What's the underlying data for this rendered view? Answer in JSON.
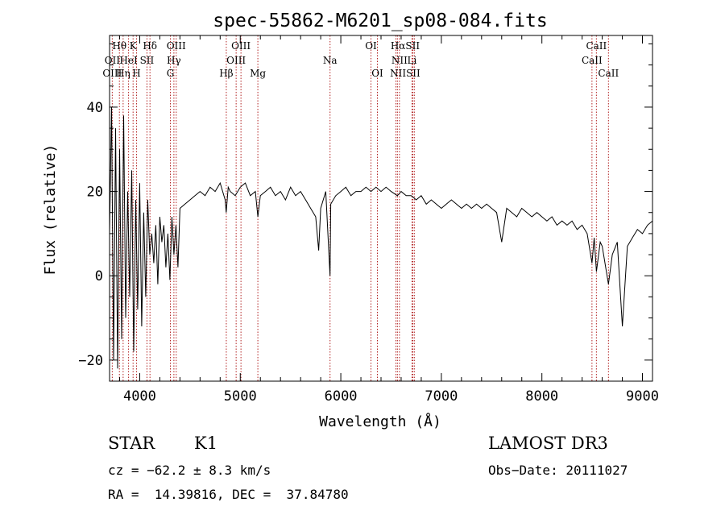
{
  "chart_data": {
    "type": "line",
    "title": "spec-55862-M6201_sp08-084.fits",
    "xlabel": "Wavelength (Å)",
    "ylabel": "Flux (relative)",
    "xlim": [
      3700,
      9100
    ],
    "ylim": [
      -25,
      57
    ],
    "x_ticks": [
      4000,
      5000,
      6000,
      7000,
      8000,
      9000
    ],
    "y_ticks": [
      -20,
      0,
      20,
      40
    ],
    "grid": false,
    "series": [
      {
        "name": "flux",
        "x": [
          3700,
          3720,
          3740,
          3760,
          3780,
          3800,
          3820,
          3840,
          3860,
          3880,
          3900,
          3920,
          3940,
          3960,
          3980,
          4000,
          4020,
          4040,
          4060,
          4080,
          4100,
          4120,
          4140,
          4160,
          4180,
          4200,
          4220,
          4240,
          4260,
          4280,
          4300,
          4320,
          4340,
          4360,
          4380,
          4400,
          4450,
          4500,
          4550,
          4600,
          4650,
          4700,
          4750,
          4800,
          4850,
          4860,
          4880,
          4900,
          4950,
          5000,
          5050,
          5100,
          5150,
          5175,
          5200,
          5250,
          5300,
          5350,
          5400,
          5450,
          5500,
          5550,
          5600,
          5650,
          5700,
          5750,
          5780,
          5800,
          5850,
          5893,
          5900,
          5950,
          6000,
          6050,
          6100,
          6150,
          6200,
          6250,
          6300,
          6350,
          6400,
          6450,
          6500,
          6563,
          6600,
          6650,
          6700,
          6750,
          6800,
          6850,
          6900,
          6950,
          7000,
          7050,
          7100,
          7150,
          7200,
          7250,
          7300,
          7350,
          7400,
          7450,
          7500,
          7550,
          7600,
          7650,
          7700,
          7750,
          7800,
          7850,
          7900,
          7950,
          8000,
          8050,
          8100,
          8150,
          8200,
          8250,
          8300,
          8350,
          8400,
          8450,
          8498,
          8520,
          8542,
          8580,
          8600,
          8662,
          8700,
          8750,
          8800,
          8850,
          8900,
          8950,
          9000,
          9050,
          9100
        ],
        "y": [
          10,
          40,
          -20,
          35,
          -22,
          30,
          -15,
          38,
          -10,
          20,
          -5,
          25,
          -18,
          18,
          -8,
          22,
          -12,
          15,
          -5,
          18,
          5,
          10,
          3,
          12,
          -2,
          14,
          8,
          12,
          2,
          10,
          -1,
          14,
          5,
          12,
          2,
          16,
          17,
          18,
          19,
          20,
          19,
          21,
          20,
          22,
          18,
          15,
          21,
          20,
          19,
          21,
          22,
          19,
          20,
          14,
          19,
          20,
          21,
          19,
          20,
          18,
          21,
          19,
          20,
          18,
          16,
          14,
          6,
          16,
          20,
          0,
          17,
          19,
          20,
          21,
          19,
          20,
          20,
          21,
          20,
          21,
          20,
          21,
          20,
          19,
          20,
          19,
          19,
          18,
          19,
          17,
          18,
          17,
          16,
          17,
          18,
          17,
          16,
          17,
          16,
          17,
          16,
          17,
          16,
          15,
          8,
          16,
          15,
          14,
          16,
          15,
          14,
          15,
          14,
          13,
          14,
          12,
          13,
          12,
          13,
          11,
          12,
          10,
          3,
          9,
          1,
          8,
          7,
          -2,
          5,
          8,
          -12,
          7,
          9,
          11,
          10,
          12,
          13
        ]
      }
    ],
    "line_labels": [
      {
        "label": "Hθ",
        "wl": 3798,
        "row": 0
      },
      {
        "label": "K",
        "wl": 3934,
        "row": 0
      },
      {
        "label": "Hδ",
        "wl": 4102,
        "row": 0
      },
      {
        "label": "OIII",
        "wl": 4363,
        "row": 0
      },
      {
        "label": "OIII",
        "wl": 5007,
        "row": 0
      },
      {
        "label": "OI",
        "wl": 6300,
        "row": 0
      },
      {
        "label": "HαSII",
        "wl": 6640,
        "row": 0
      },
      {
        "label": "CaII",
        "wl": 8542,
        "row": 0
      },
      {
        "label": "OII",
        "wl": 3727,
        "row": 1
      },
      {
        "label": "HeI",
        "wl": 3889,
        "row": 1
      },
      {
        "label": "SII",
        "wl": 4072,
        "row": 1
      },
      {
        "label": "Hγ",
        "wl": 4340,
        "row": 1
      },
      {
        "label": "OIII",
        "wl": 4959,
        "row": 1
      },
      {
        "label": "Na",
        "wl": 5893,
        "row": 1
      },
      {
        "label": "NII",
        "wl": 6583,
        "row": 1
      },
      {
        "label": "Li",
        "wl": 6708,
        "row": 1
      },
      {
        "label": "CaII",
        "wl": 8498,
        "row": 1
      },
      {
        "label": "OIII",
        "wl": 3727,
        "row": 2
      },
      {
        "label": "Hη",
        "wl": 3835,
        "row": 2
      },
      {
        "label": "H",
        "wl": 3968,
        "row": 2
      },
      {
        "label": "G",
        "wl": 4305,
        "row": 2
      },
      {
        "label": "Hβ",
        "wl": 4861,
        "row": 2
      },
      {
        "label": "Mg",
        "wl": 5175,
        "row": 2
      },
      {
        "label": "OI",
        "wl": 6364,
        "row": 2
      },
      {
        "label": "NIISII",
        "wl": 6640,
        "row": 2
      },
      {
        "label": "CaII",
        "wl": 8662,
        "row": 2
      }
    ],
    "line_markers": [
      3727,
      3798,
      3835,
      3889,
      3934,
      3968,
      4072,
      4102,
      4305,
      4340,
      4363,
      4861,
      4959,
      5007,
      5175,
      5893,
      6300,
      6364,
      6548,
      6563,
      6583,
      6708,
      6716,
      6731,
      8498,
      8542,
      8662
    ]
  },
  "footer": {
    "object_class": "STAR",
    "subclass": "K1",
    "survey": "LAMOST DR3",
    "cz": "cz = −62.2 ± 8.3 km/s",
    "obs_date": "Obs−Date: 20111027",
    "radec": "RA =  14.39816, DEC =  37.84780"
  }
}
